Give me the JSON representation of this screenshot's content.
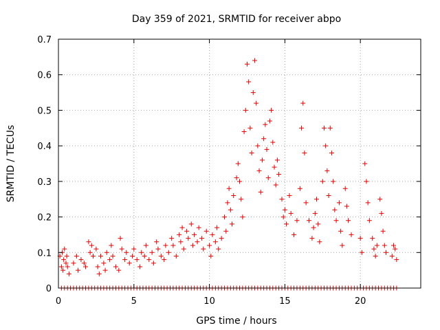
{
  "chart_data": {
    "type": "scatter",
    "title": "Day 359 of 2021, SRMTID for receiver abpo",
    "xlabel": "GPS time / hours",
    "ylabel": "SRMTID / TECUs",
    "xlim": [
      0,
      24
    ],
    "ylim": [
      0,
      0.7
    ],
    "xticks": [
      0,
      5,
      10,
      15,
      20
    ],
    "yticks": [
      0,
      0.1,
      0.2,
      0.3,
      0.4,
      0.5,
      0.6,
      0.7
    ],
    "xtick_labels": [
      "0",
      "5",
      "10",
      "15",
      "20"
    ],
    "ytick_labels": [
      "0",
      "0.1",
      "0.2",
      "0.3",
      "0.4",
      "0.5",
      "0.6",
      "0.7"
    ],
    "grid": true,
    "marker": "+",
    "color": "#e00000",
    "series": [
      {
        "name": "SRMTID",
        "points": [
          [
            0.1,
            0.09
          ],
          [
            0.2,
            0.06
          ],
          [
            0.25,
            0.1
          ],
          [
            0.3,
            0.05
          ],
          [
            0.35,
            0.08
          ],
          [
            0.4,
            0.11
          ],
          [
            0.5,
            0.07
          ],
          [
            0.55,
            0.09
          ],
          [
            0.6,
            0.06
          ],
          [
            0.7,
            0.04
          ],
          [
            1.0,
            0.07
          ],
          [
            1.2,
            0.09
          ],
          [
            1.3,
            0.05
          ],
          [
            1.5,
            0.08
          ],
          [
            1.7,
            0.07
          ],
          [
            1.8,
            0.06
          ],
          [
            2.0,
            0.13
          ],
          [
            2.1,
            0.1
          ],
          [
            2.2,
            0.12
          ],
          [
            2.3,
            0.09
          ],
          [
            2.5,
            0.11
          ],
          [
            2.6,
            0.06
          ],
          [
            2.7,
            0.04
          ],
          [
            2.8,
            0.09
          ],
          [
            3.0,
            0.07
          ],
          [
            3.1,
            0.05
          ],
          [
            3.2,
            0.1
          ],
          [
            3.4,
            0.08
          ],
          [
            3.5,
            0.12
          ],
          [
            3.6,
            0.09
          ],
          [
            3.8,
            0.06
          ],
          [
            4.0,
            0.05
          ],
          [
            4.1,
            0.14
          ],
          [
            4.2,
            0.11
          ],
          [
            4.4,
            0.08
          ],
          [
            4.5,
            0.1
          ],
          [
            4.7,
            0.07
          ],
          [
            4.9,
            0.09
          ],
          [
            5.0,
            0.11
          ],
          [
            5.2,
            0.08
          ],
          [
            5.4,
            0.06
          ],
          [
            5.5,
            0.1
          ],
          [
            5.7,
            0.09
          ],
          [
            5.8,
            0.12
          ],
          [
            6.0,
            0.08
          ],
          [
            6.2,
            0.1
          ],
          [
            6.3,
            0.07
          ],
          [
            6.5,
            0.13
          ],
          [
            6.6,
            0.11
          ],
          [
            6.8,
            0.09
          ],
          [
            7.0,
            0.08
          ],
          [
            7.1,
            0.12
          ],
          [
            7.3,
            0.1
          ],
          [
            7.5,
            0.14
          ],
          [
            7.6,
            0.12
          ],
          [
            7.8,
            0.09
          ],
          [
            8.0,
            0.15
          ],
          [
            8.1,
            0.13
          ],
          [
            8.2,
            0.17
          ],
          [
            8.3,
            0.11
          ],
          [
            8.5,
            0.16
          ],
          [
            8.6,
            0.14
          ],
          [
            8.8,
            0.18
          ],
          [
            8.9,
            0.12
          ],
          [
            9.0,
            0.15
          ],
          [
            9.2,
            0.13
          ],
          [
            9.3,
            0.17
          ],
          [
            9.5,
            0.14
          ],
          [
            9.6,
            0.11
          ],
          [
            9.8,
            0.16
          ],
          [
            10.0,
            0.12
          ],
          [
            10.1,
            0.09
          ],
          [
            10.2,
            0.15
          ],
          [
            10.4,
            0.13
          ],
          [
            10.5,
            0.17
          ],
          [
            10.6,
            0.11
          ],
          [
            10.8,
            0.14
          ],
          [
            11.0,
            0.2
          ],
          [
            11.1,
            0.16
          ],
          [
            11.2,
            0.24
          ],
          [
            11.3,
            0.28
          ],
          [
            11.4,
            0.22
          ],
          [
            11.5,
            0.18
          ],
          [
            11.6,
            0.26
          ],
          [
            11.8,
            0.31
          ],
          [
            11.9,
            0.35
          ],
          [
            12.0,
            0.3
          ],
          [
            12.1,
            0.25
          ],
          [
            12.2,
            0.2
          ],
          [
            12.3,
            0.44
          ],
          [
            12.4,
            0.5
          ],
          [
            12.5,
            0.63
          ],
          [
            12.6,
            0.58
          ],
          [
            12.7,
            0.45
          ],
          [
            12.8,
            0.38
          ],
          [
            12.9,
            0.55
          ],
          [
            13.0,
            0.64
          ],
          [
            13.1,
            0.52
          ],
          [
            13.2,
            0.4
          ],
          [
            13.3,
            0.33
          ],
          [
            13.4,
            0.27
          ],
          [
            13.5,
            0.36
          ],
          [
            13.6,
            0.42
          ],
          [
            13.7,
            0.46
          ],
          [
            13.8,
            0.39
          ],
          [
            13.9,
            0.31
          ],
          [
            14.0,
            0.47
          ],
          [
            14.1,
            0.5
          ],
          [
            14.2,
            0.41
          ],
          [
            14.3,
            0.34
          ],
          [
            14.4,
            0.29
          ],
          [
            14.5,
            0.36
          ],
          [
            14.6,
            0.32
          ],
          [
            14.8,
            0.25
          ],
          [
            14.9,
            0.2
          ],
          [
            15.0,
            0.22
          ],
          [
            15.1,
            0.18
          ],
          [
            15.3,
            0.26
          ],
          [
            15.4,
            0.21
          ],
          [
            15.6,
            0.15
          ],
          [
            15.8,
            0.19
          ],
          [
            16.0,
            0.28
          ],
          [
            16.1,
            0.45
          ],
          [
            16.2,
            0.52
          ],
          [
            16.3,
            0.38
          ],
          [
            16.4,
            0.24
          ],
          [
            16.6,
            0.19
          ],
          [
            16.8,
            0.14
          ],
          [
            16.9,
            0.17
          ],
          [
            17.0,
            0.21
          ],
          [
            17.1,
            0.25
          ],
          [
            17.2,
            0.18
          ],
          [
            17.3,
            0.13
          ],
          [
            17.5,
            0.3
          ],
          [
            17.6,
            0.45
          ],
          [
            17.7,
            0.4
          ],
          [
            17.8,
            0.33
          ],
          [
            17.9,
            0.26
          ],
          [
            18.0,
            0.45
          ],
          [
            18.1,
            0.38
          ],
          [
            18.2,
            0.3
          ],
          [
            18.3,
            0.22
          ],
          [
            18.4,
            0.19
          ],
          [
            18.6,
            0.24
          ],
          [
            18.7,
            0.16
          ],
          [
            18.8,
            0.12
          ],
          [
            19.0,
            0.28
          ],
          [
            19.1,
            0.23
          ],
          [
            19.2,
            0.19
          ],
          [
            19.4,
            0.15
          ],
          [
            20.0,
            0.14
          ],
          [
            20.1,
            0.1
          ],
          [
            20.3,
            0.35
          ],
          [
            20.4,
            0.3
          ],
          [
            20.5,
            0.24
          ],
          [
            20.6,
            0.19
          ],
          [
            20.8,
            0.14
          ],
          [
            20.9,
            0.11
          ],
          [
            21.0,
            0.09
          ],
          [
            21.1,
            0.12
          ],
          [
            21.3,
            0.25
          ],
          [
            21.4,
            0.21
          ],
          [
            21.5,
            0.16
          ],
          [
            21.6,
            0.12
          ],
          [
            21.7,
            0.1
          ],
          [
            22.1,
            0.09
          ],
          [
            22.2,
            0.12
          ],
          [
            22.3,
            0.11
          ],
          [
            22.4,
            0.08
          ],
          [
            0.2,
            0.0
          ],
          [
            0.4,
            0.0
          ],
          [
            0.6,
            0.0
          ],
          [
            0.8,
            0.0
          ],
          [
            1.0,
            0.0
          ],
          [
            1.2,
            0.0
          ],
          [
            1.4,
            0.0
          ],
          [
            1.6,
            0.0
          ],
          [
            1.8,
            0.0
          ],
          [
            2.0,
            0.0
          ],
          [
            2.2,
            0.0
          ],
          [
            2.4,
            0.0
          ],
          [
            2.6,
            0.0
          ],
          [
            2.8,
            0.0
          ],
          [
            3.0,
            0.0
          ],
          [
            3.2,
            0.0
          ],
          [
            3.4,
            0.0
          ],
          [
            3.6,
            0.0
          ],
          [
            3.8,
            0.0
          ],
          [
            4.0,
            0.0
          ],
          [
            4.2,
            0.0
          ],
          [
            4.4,
            0.0
          ],
          [
            4.6,
            0.0
          ],
          [
            4.8,
            0.0
          ],
          [
            5.0,
            0.0
          ],
          [
            5.2,
            0.0
          ],
          [
            5.4,
            0.0
          ],
          [
            5.6,
            0.0
          ],
          [
            5.8,
            0.0
          ],
          [
            6.0,
            0.0
          ],
          [
            6.2,
            0.0
          ],
          [
            6.4,
            0.0
          ],
          [
            6.6,
            0.0
          ],
          [
            6.8,
            0.0
          ],
          [
            7.0,
            0.0
          ],
          [
            7.2,
            0.0
          ],
          [
            7.4,
            0.0
          ],
          [
            7.6,
            0.0
          ],
          [
            7.8,
            0.0
          ],
          [
            8.0,
            0.0
          ],
          [
            8.2,
            0.0
          ],
          [
            8.4,
            0.0
          ],
          [
            8.6,
            0.0
          ],
          [
            8.8,
            0.0
          ],
          [
            9.0,
            0.0
          ],
          [
            9.2,
            0.0
          ],
          [
            9.4,
            0.0
          ],
          [
            9.6,
            0.0
          ],
          [
            9.8,
            0.0
          ],
          [
            10.0,
            0.0
          ],
          [
            10.2,
            0.0
          ],
          [
            10.4,
            0.0
          ],
          [
            10.6,
            0.0
          ],
          [
            10.8,
            0.0
          ],
          [
            11.0,
            0.0
          ],
          [
            11.2,
            0.0
          ],
          [
            11.4,
            0.0
          ],
          [
            11.6,
            0.0
          ],
          [
            11.8,
            0.0
          ],
          [
            12.0,
            0.0
          ],
          [
            12.2,
            0.0
          ],
          [
            12.4,
            0.0
          ],
          [
            12.6,
            0.0
          ],
          [
            12.8,
            0.0
          ],
          [
            13.0,
            0.0
          ],
          [
            13.2,
            0.0
          ],
          [
            13.4,
            0.0
          ],
          [
            13.6,
            0.0
          ],
          [
            13.8,
            0.0
          ],
          [
            14.0,
            0.0
          ],
          [
            14.2,
            0.0
          ],
          [
            14.4,
            0.0
          ],
          [
            14.6,
            0.0
          ],
          [
            14.8,
            0.0
          ],
          [
            15.0,
            0.0
          ],
          [
            15.2,
            0.0
          ],
          [
            15.4,
            0.0
          ],
          [
            15.6,
            0.0
          ],
          [
            15.8,
            0.0
          ],
          [
            16.0,
            0.0
          ],
          [
            16.2,
            0.0
          ],
          [
            16.4,
            0.0
          ],
          [
            16.6,
            0.0
          ],
          [
            16.8,
            0.0
          ],
          [
            17.0,
            0.0
          ],
          [
            17.2,
            0.0
          ],
          [
            17.4,
            0.0
          ],
          [
            17.6,
            0.0
          ],
          [
            17.8,
            0.0
          ],
          [
            18.0,
            0.0
          ],
          [
            18.2,
            0.0
          ],
          [
            18.4,
            0.0
          ],
          [
            18.6,
            0.0
          ],
          [
            18.8,
            0.0
          ],
          [
            19.0,
            0.0
          ],
          [
            19.2,
            0.0
          ],
          [
            19.4,
            0.0
          ],
          [
            19.6,
            0.0
          ],
          [
            19.8,
            0.0
          ],
          [
            20.0,
            0.0
          ],
          [
            20.2,
            0.0
          ],
          [
            20.4,
            0.0
          ],
          [
            20.6,
            0.0
          ],
          [
            20.8,
            0.0
          ],
          [
            21.0,
            0.0
          ],
          [
            21.2,
            0.0
          ],
          [
            21.4,
            0.0
          ],
          [
            21.6,
            0.0
          ],
          [
            21.8,
            0.0
          ],
          [
            22.0,
            0.0
          ],
          [
            22.2,
            0.0
          ],
          [
            22.4,
            0.0
          ]
        ]
      }
    ]
  }
}
